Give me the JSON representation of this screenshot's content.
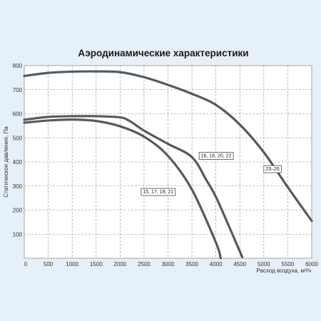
{
  "colors": {
    "background": "#e6f0f8",
    "plot_area": "#ffffff",
    "grid": "#8c8c8c",
    "curve": "#555a60",
    "text": "#333333"
  },
  "chart_data": {
    "type": "line",
    "title": "Аэродинамические характеристики",
    "xlabel": "Расход воздуха, м³/ч",
    "ylabel": "Статическое давление, Па",
    "xlim": [
      0,
      6000
    ],
    "ylim": [
      0,
      800
    ],
    "x_ticks": [
      "0",
      "500",
      "1000",
      "1500",
      "2000",
      "2500",
      "3000",
      "3500",
      "4000",
      "4500",
      "5000",
      "5500",
      "6000"
    ],
    "y_ticks": [
      "100",
      "200",
      "300",
      "400",
      "500",
      "600",
      "700",
      "800"
    ],
    "grid": "dashed",
    "series": [
      {
        "name": "15, 17, 19, 21",
        "x": [
          0,
          500,
          1000,
          1500,
          2000,
          2500,
          3000,
          3500,
          4000,
          4100
        ],
        "y": [
          563,
          572,
          576,
          570,
          548,
          505,
          425,
          285,
          65,
          0
        ]
      },
      {
        "name": "16, 18, 20, 22",
        "x": [
          0,
          500,
          1000,
          1500,
          2000,
          2200,
          2500,
          3000,
          3500,
          3800,
          4000,
          4300,
          4550
        ],
        "y": [
          575,
          587,
          590,
          590,
          585,
          570,
          530,
          475,
          420,
          325,
          255,
          120,
          5
        ]
      },
      {
        "name": "23–26",
        "x": [
          0,
          500,
          1000,
          1500,
          2000,
          2500,
          3000,
          3500,
          4000,
          4500,
          5000,
          5500,
          6000
        ],
        "y": [
          757,
          770,
          775,
          776,
          773,
          752,
          720,
          683,
          637,
          555,
          440,
          295,
          155
        ]
      }
    ]
  }
}
